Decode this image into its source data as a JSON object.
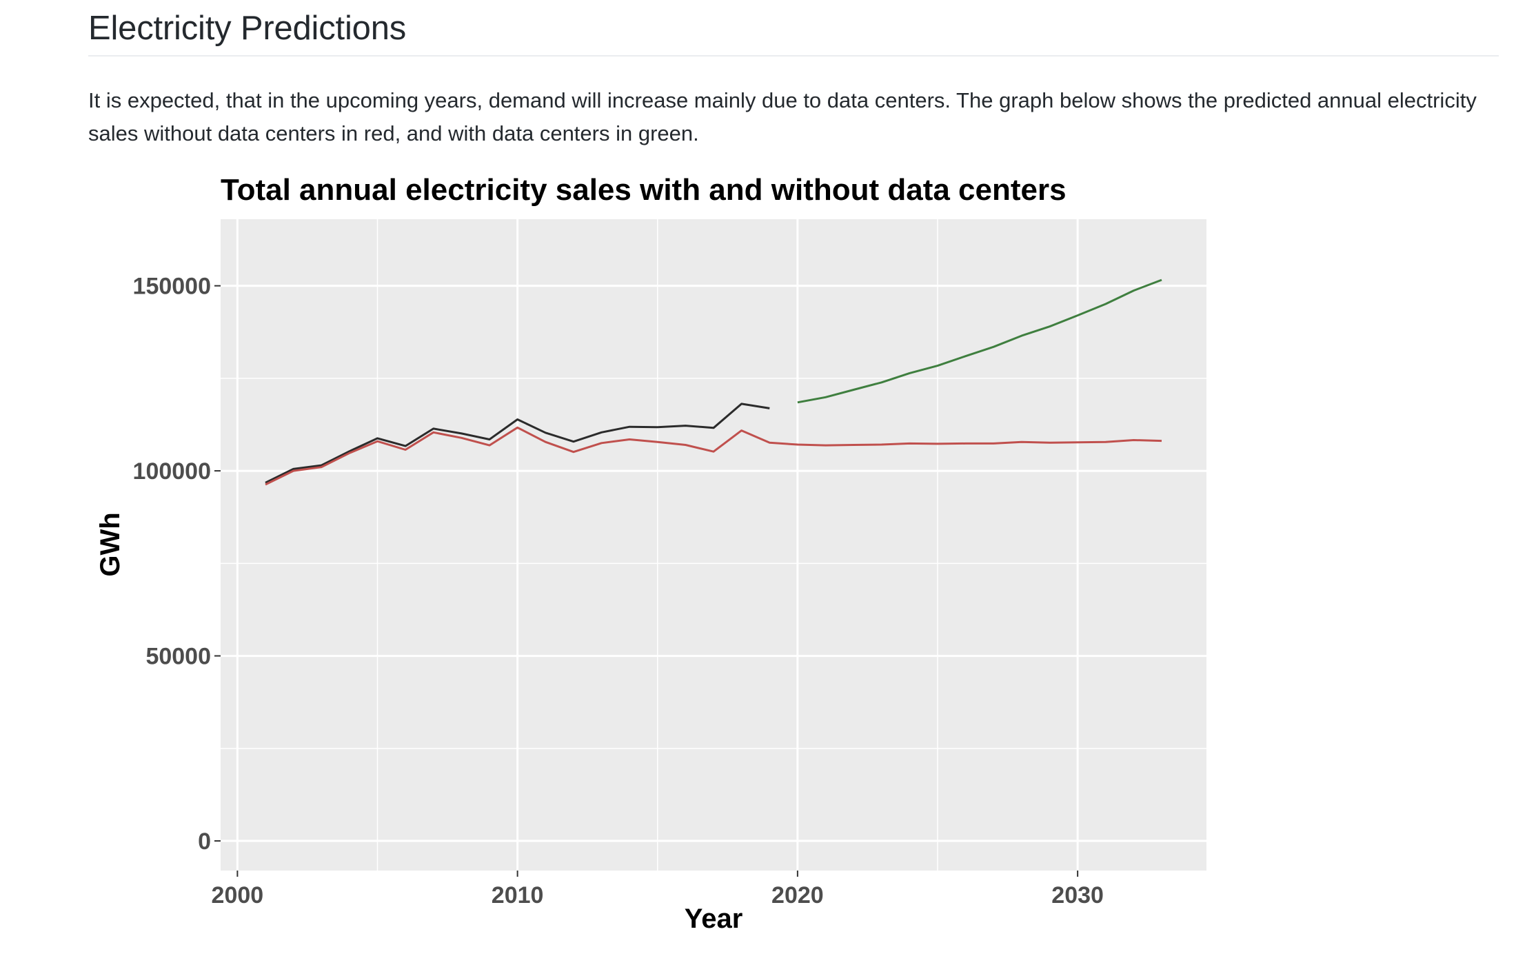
{
  "page": {
    "heading": "Electricity Predictions",
    "description": "It is expected, that in the upcoming years, demand will increase mainly due to data centers. The graph below shows the predicted annual electricity sales without data centers in red, and with data centers in green."
  },
  "colors": {
    "panel": "#ebebeb",
    "grid": "#ffffff",
    "historical_total": "#2b2b2b",
    "without_data_centers": "#c0504d",
    "with_data_centers": "#3f7f3f"
  },
  "chart_data": {
    "type": "line",
    "title": "Total annual electricity sales with and without data centers",
    "xlabel": "Year",
    "ylabel": "GWh",
    "xlim": [
      1999.4,
      2034.6
    ],
    "ylim": [
      -8000,
      168000
    ],
    "x_ticks": [
      2000,
      2010,
      2020,
      2030
    ],
    "x_minor": [
      2005,
      2015,
      2025
    ],
    "y_ticks": [
      0,
      50000,
      100000,
      150000
    ],
    "y_minor": [
      25000,
      75000,
      125000
    ],
    "grid": true,
    "legend": "none",
    "series": [
      {
        "key": "historical_total",
        "x": [
          2001,
          2002,
          2003,
          2004,
          2005,
          2006,
          2007,
          2008,
          2009,
          2010,
          2011,
          2012,
          2013,
          2014,
          2015,
          2016,
          2017,
          2018,
          2019
        ],
        "values": [
          96800,
          100500,
          101500,
          105300,
          108800,
          106700,
          111400,
          110100,
          108500,
          113900,
          110300,
          107900,
          110400,
          111900,
          111800,
          112200,
          111600,
          118100,
          116900
        ]
      },
      {
        "key": "without_data_centers",
        "x": [
          2001,
          2002,
          2003,
          2004,
          2005,
          2006,
          2007,
          2008,
          2009,
          2010,
          2011,
          2012,
          2013,
          2014,
          2015,
          2016,
          2017,
          2018,
          2019,
          2020,
          2021,
          2022,
          2023,
          2024,
          2025,
          2026,
          2027,
          2028,
          2029,
          2030,
          2031,
          2032,
          2033
        ],
        "values": [
          96300,
          100000,
          101000,
          104800,
          108000,
          105700,
          110400,
          108900,
          106900,
          111700,
          107800,
          105100,
          107500,
          108500,
          107800,
          107000,
          105200,
          110900,
          107600,
          107100,
          106900,
          107000,
          107100,
          107400,
          107300,
          107400,
          107400,
          107800,
          107600,
          107700,
          107800,
          108300,
          108100
        ]
      },
      {
        "key": "with_data_centers",
        "x": [
          2020,
          2021,
          2022,
          2023,
          2024,
          2025,
          2026,
          2027,
          2028,
          2029,
          2030,
          2031,
          2032,
          2033
        ],
        "values": [
          118500,
          119900,
          121900,
          123900,
          126400,
          128400,
          131000,
          133500,
          136500,
          139000,
          142000,
          145100,
          148700,
          151600
        ]
      }
    ]
  }
}
